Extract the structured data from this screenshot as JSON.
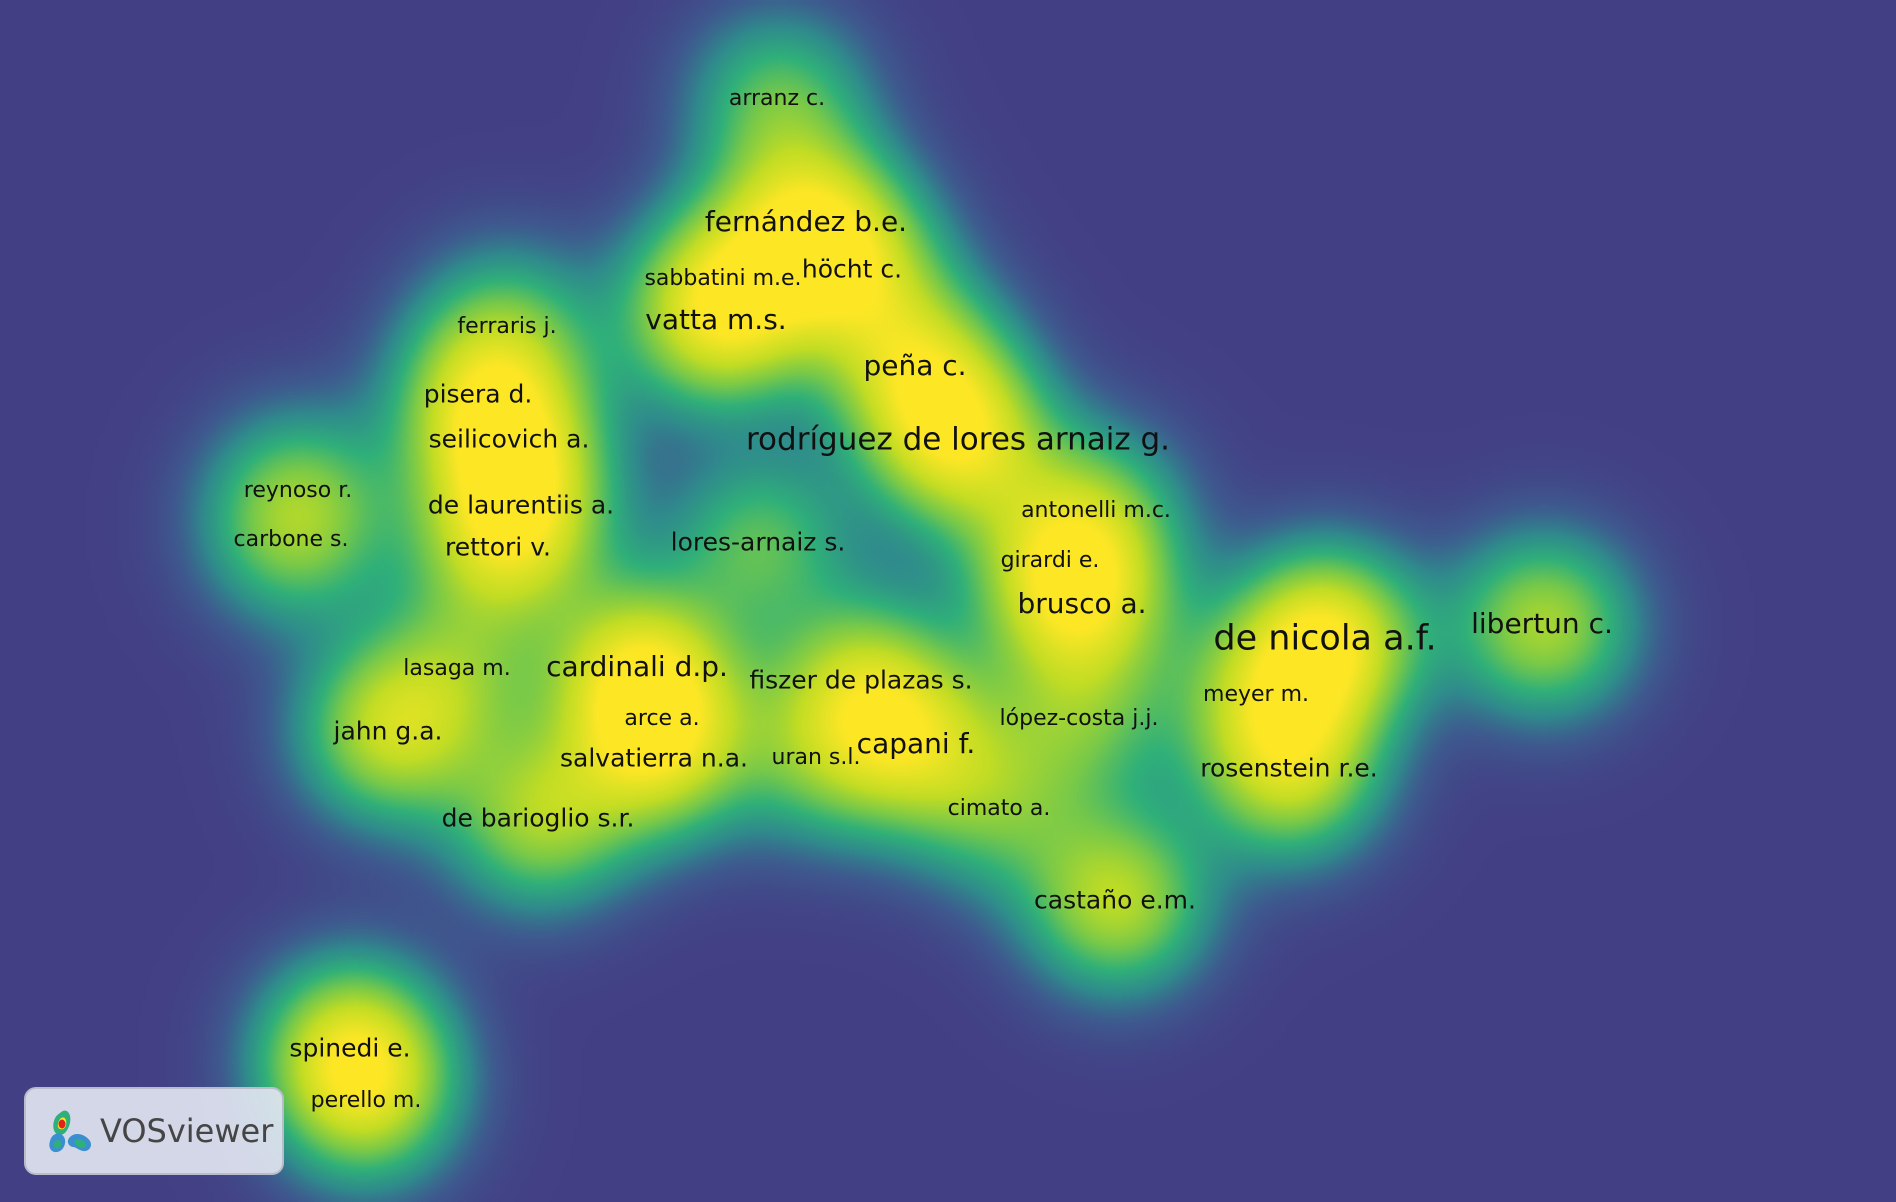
{
  "map": {
    "colors": {
      "background": "#433f85",
      "ramp": [
        "#433f85",
        "#3e5b8f",
        "#2f8c8c",
        "#2fb07a",
        "#77c94a",
        "#c2dd24",
        "#fde725"
      ]
    },
    "labels": [
      {
        "id": "arranz",
        "text": "arranz c.",
        "size": 1,
        "weight": 0.55
      },
      {
        "id": "fernandez",
        "text": "fernández b.e.",
        "size": 3,
        "weight": 0.85
      },
      {
        "id": "hocht",
        "text": "höcht c.",
        "size": 2,
        "weight": 0.7
      },
      {
        "id": "sabbatini",
        "text": "sabbatini m.e.",
        "size": 1,
        "weight": 0.45
      },
      {
        "id": "vatta",
        "text": "vatta m.s.",
        "size": 3,
        "weight": 0.85
      },
      {
        "id": "ferraris",
        "text": "ferraris j.",
        "size": 1,
        "weight": 0.45
      },
      {
        "id": "pisera",
        "text": "pisera d.",
        "size": 2,
        "weight": 0.6
      },
      {
        "id": "pena",
        "text": "peña c.",
        "size": 3,
        "weight": 0.8
      },
      {
        "id": "rodriguez",
        "text": "rodríguez de lores arnaiz g.",
        "size": 4,
        "weight": 1.0
      },
      {
        "id": "seilicovich",
        "text": "seilicovich a.",
        "size": 2,
        "weight": 0.65
      },
      {
        "id": "reynoso",
        "text": "reynoso r.",
        "size": 1,
        "weight": 0.45
      },
      {
        "id": "delaurentiis",
        "text": "de laurentiis a.",
        "size": 2,
        "weight": 0.6
      },
      {
        "id": "carbone",
        "text": "carbone s.",
        "size": 1,
        "weight": 0.45
      },
      {
        "id": "rettori",
        "text": "rettori v.",
        "size": 2,
        "weight": 0.6
      },
      {
        "id": "loresarnaiz",
        "text": "lores-arnaiz s.",
        "size": 2,
        "weight": 0.55
      },
      {
        "id": "antonelli",
        "text": "antonelli m.c.",
        "size": 1,
        "weight": 0.5
      },
      {
        "id": "girardi",
        "text": "girardi e.",
        "size": 1,
        "weight": 0.5
      },
      {
        "id": "brusco",
        "text": "brusco a.",
        "size": 3,
        "weight": 0.8
      },
      {
        "id": "denicola",
        "text": "de nicola a.f.",
        "size": 5,
        "weight": 1.15
      },
      {
        "id": "libertun",
        "text": "libertun c.",
        "size": 3,
        "weight": 0.8
      },
      {
        "id": "lasaga",
        "text": "lasaga m.",
        "size": 1,
        "weight": 0.45
      },
      {
        "id": "cardinali",
        "text": "cardinali d.p.",
        "size": 3,
        "weight": 0.9
      },
      {
        "id": "fiszer",
        "text": "fiszer de plazas s.",
        "size": 2,
        "weight": 0.7
      },
      {
        "id": "meyer",
        "text": "meyer m.",
        "size": 1,
        "weight": 0.5
      },
      {
        "id": "lopezcosta",
        "text": "lópez-costa j.j.",
        "size": 1,
        "weight": 0.5
      },
      {
        "id": "jahn",
        "text": "jahn g.a.",
        "size": 2,
        "weight": 0.85
      },
      {
        "id": "arce",
        "text": "arce a.",
        "size": 1,
        "weight": 0.45
      },
      {
        "id": "capani",
        "text": "capani f.",
        "size": 3,
        "weight": 0.75
      },
      {
        "id": "salvatierra",
        "text": "salvatierra n.a.",
        "size": 2,
        "weight": 0.6
      },
      {
        "id": "uran",
        "text": "uran s.l.",
        "size": 1,
        "weight": 0.45
      },
      {
        "id": "rosenstein",
        "text": "rosenstein r.e.",
        "size": 2,
        "weight": 0.85
      },
      {
        "id": "cimato",
        "text": "cimato a.",
        "size": 1,
        "weight": 0.45
      },
      {
        "id": "debarioglio",
        "text": "de barioglio s.r.",
        "size": 2,
        "weight": 0.75
      },
      {
        "id": "castano",
        "text": "castaño e.m.",
        "size": 2,
        "weight": 0.85
      },
      {
        "id": "spinedi",
        "text": "spinedi e.",
        "size": 2,
        "weight": 0.9
      },
      {
        "id": "perello",
        "text": "perello m.",
        "size": 1,
        "weight": 0.6
      }
    ]
  },
  "logo": {
    "text": "VOSviewer"
  }
}
